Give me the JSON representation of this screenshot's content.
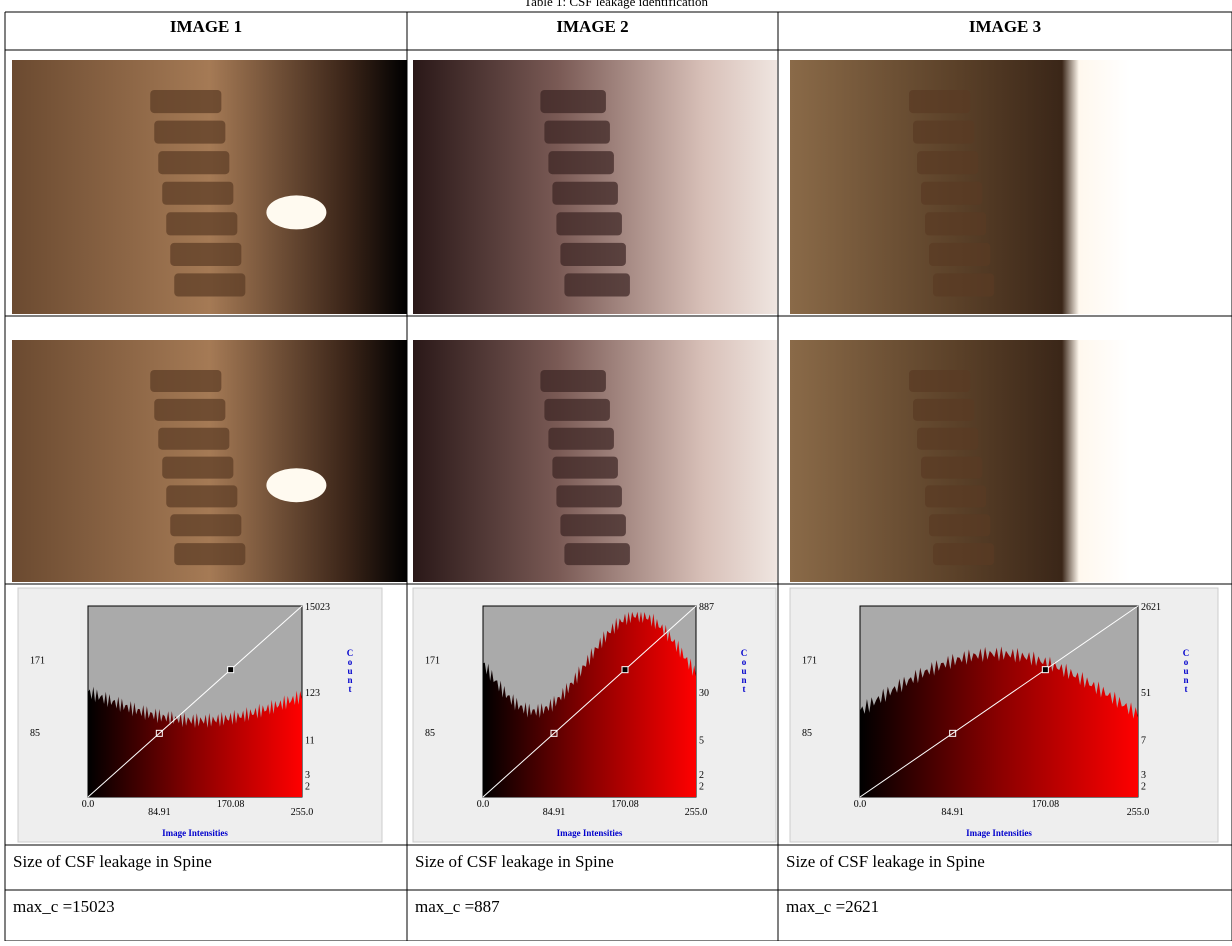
{
  "caption": "Table 1: CSF leakage identification",
  "table": {
    "headers": [
      "IMAGE 1",
      "IMAGE 2",
      "IMAGE 3"
    ],
    "histograms": [
      {
        "y_ticks": [
          "171",
          "85"
        ],
        "count_ticks": [
          "15023",
          "123",
          "11",
          "3",
          "2"
        ],
        "x_ticks": [
          "0.0",
          "84.91",
          "170.08",
          "255.0"
        ],
        "y_label": "Count",
        "x_label": "Image Intensities"
      },
      {
        "y_ticks": [
          "171",
          "85"
        ],
        "count_ticks": [
          "887",
          "30",
          "5",
          "2",
          "2"
        ],
        "x_ticks": [
          "0.0",
          "84.91",
          "170.08",
          "255.0"
        ],
        "y_label": "Count",
        "x_label": "Image Intensities"
      },
      {
        "y_ticks": [
          "171",
          "85"
        ],
        "count_ticks": [
          "2621",
          "51",
          "7",
          "3",
          "2"
        ],
        "x_ticks": [
          "0.0",
          "84.91",
          "170.08",
          "255.0"
        ],
        "y_label": "Count",
        "x_label": "Image Intensities"
      }
    ],
    "rows": [
      [
        "Size of CSF leakage in Spine",
        "Size of CSF leakage in Spine",
        "Size of CSF leakage in Spine"
      ],
      [
        "max_c =15023",
        "max_c =887",
        "max_c =2621"
      ]
    ]
  }
}
